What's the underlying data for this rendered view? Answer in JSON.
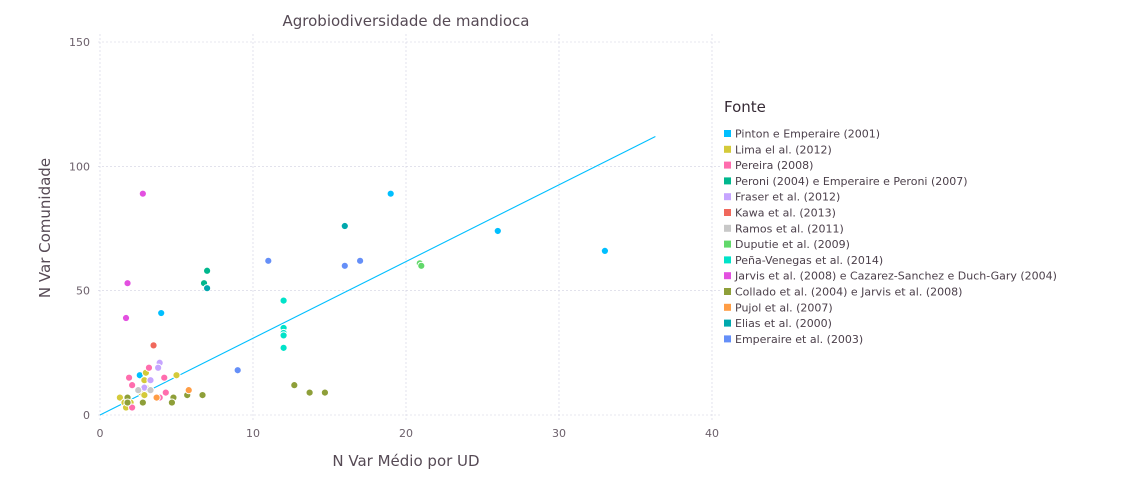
{
  "chart_data": {
    "type": "scatter",
    "title": "Agrobiodiversidade de mandioca",
    "xlabel": "N Var Médio por UD",
    "ylabel": "N Var Comunidade",
    "xlim": [
      0,
      40
    ],
    "ylim": [
      0,
      150
    ],
    "xticks": [
      "0",
      "10",
      "20",
      "30",
      "40"
    ],
    "yticks": [
      "0",
      "50",
      "100",
      "150"
    ],
    "grid": true,
    "legend_title": "Fonte",
    "legend_position": "right",
    "trendline": {
      "x": [
        0,
        36.3
      ],
      "y": [
        0,
        112
      ],
      "color": "#00bfff"
    },
    "series": [
      {
        "name": "Pinton e Emperaire (2001)",
        "color": "#00bfff",
        "points": [
          [
            19,
            89
          ],
          [
            26,
            74
          ],
          [
            33,
            66
          ],
          [
            4,
            41
          ],
          [
            2.6,
            16
          ]
        ]
      },
      {
        "name": "Lima el al. (2012)",
        "color": "#d4ca3a",
        "points": [
          [
            1.3,
            7
          ],
          [
            1.6,
            5
          ],
          [
            2,
            5
          ],
          [
            2.9,
            14
          ],
          [
            3,
            17
          ],
          [
            3,
            11
          ],
          [
            2.7,
            9
          ],
          [
            5,
            16
          ],
          [
            2.9,
            8
          ],
          [
            1.7,
            3
          ]
        ]
      },
      {
        "name": "Pereira (2008)",
        "color": "#ff6dae",
        "points": [
          [
            1.9,
            15
          ],
          [
            2.1,
            12
          ],
          [
            2.1,
            3
          ],
          [
            3.2,
            19
          ],
          [
            4.2,
            15
          ],
          [
            4.3,
            9
          ],
          [
            3.9,
            7
          ]
        ]
      },
      {
        "name": "Peroni (2004) e Emperaire e Peroni (2007)",
        "color": "#00b78d",
        "points": [
          [
            7,
            58
          ],
          [
            6.8,
            53
          ]
        ]
      },
      {
        "name": "Fraser et al. (2012)",
        "color": "#c6a5ff",
        "points": [
          [
            3.9,
            21
          ],
          [
            3.8,
            19
          ],
          [
            3.3,
            14
          ],
          [
            2.9,
            11
          ]
        ]
      },
      {
        "name": "Kawa et al. (2013)",
        "color": "#f0685c",
        "points": [
          [
            3.5,
            28
          ]
        ]
      },
      {
        "name": "Ramos et al. (2011)",
        "color": "#c8c8c8",
        "points": [
          [
            2.5,
            10
          ],
          [
            3.3,
            10
          ]
        ]
      },
      {
        "name": "Duputie et al. (2009)",
        "color": "#61d86a",
        "points": [
          [
            20.9,
            61
          ],
          [
            21,
            60
          ]
        ]
      },
      {
        "name": "Peña-Venegas et al. (2014)",
        "color": "#00e3c9",
        "points": [
          [
            12,
            46
          ],
          [
            12,
            35
          ],
          [
            12,
            33
          ],
          [
            12,
            32
          ],
          [
            12,
            27
          ]
        ]
      },
      {
        "name": "Jarvis et al. (2008) e Cazarez-Sanchez e Duch-Gary (2004)",
        "color": "#e350e0",
        "points": [
          [
            2.8,
            89
          ],
          [
            1.8,
            53
          ],
          [
            1.7,
            39
          ]
        ]
      },
      {
        "name": "Collado et al. (2004) e Jarvis et al. (2008)",
        "color": "#8e9f39",
        "points": [
          [
            12.7,
            12
          ],
          [
            13.7,
            9
          ],
          [
            14.7,
            9
          ],
          [
            6.7,
            8
          ],
          [
            5.7,
            8
          ],
          [
            4.8,
            7
          ],
          [
            4.7,
            5
          ],
          [
            2.8,
            5
          ],
          [
            1.8,
            7
          ],
          [
            1.8,
            5
          ]
        ]
      },
      {
        "name": "Pujol et al. (2007)",
        "color": "#ff9d45",
        "points": [
          [
            5.8,
            10
          ],
          [
            3.7,
            7
          ]
        ]
      },
      {
        "name": "Elias et al. (2000)",
        "color": "#00a8ad",
        "points": [
          [
            16,
            76
          ],
          [
            7,
            51
          ]
        ]
      },
      {
        "name": "Emperaire et al. (2003)",
        "color": "#658ff8",
        "points": [
          [
            11,
            62
          ],
          [
            17,
            62
          ],
          [
            16,
            60
          ],
          [
            9,
            18
          ]
        ]
      }
    ]
  }
}
